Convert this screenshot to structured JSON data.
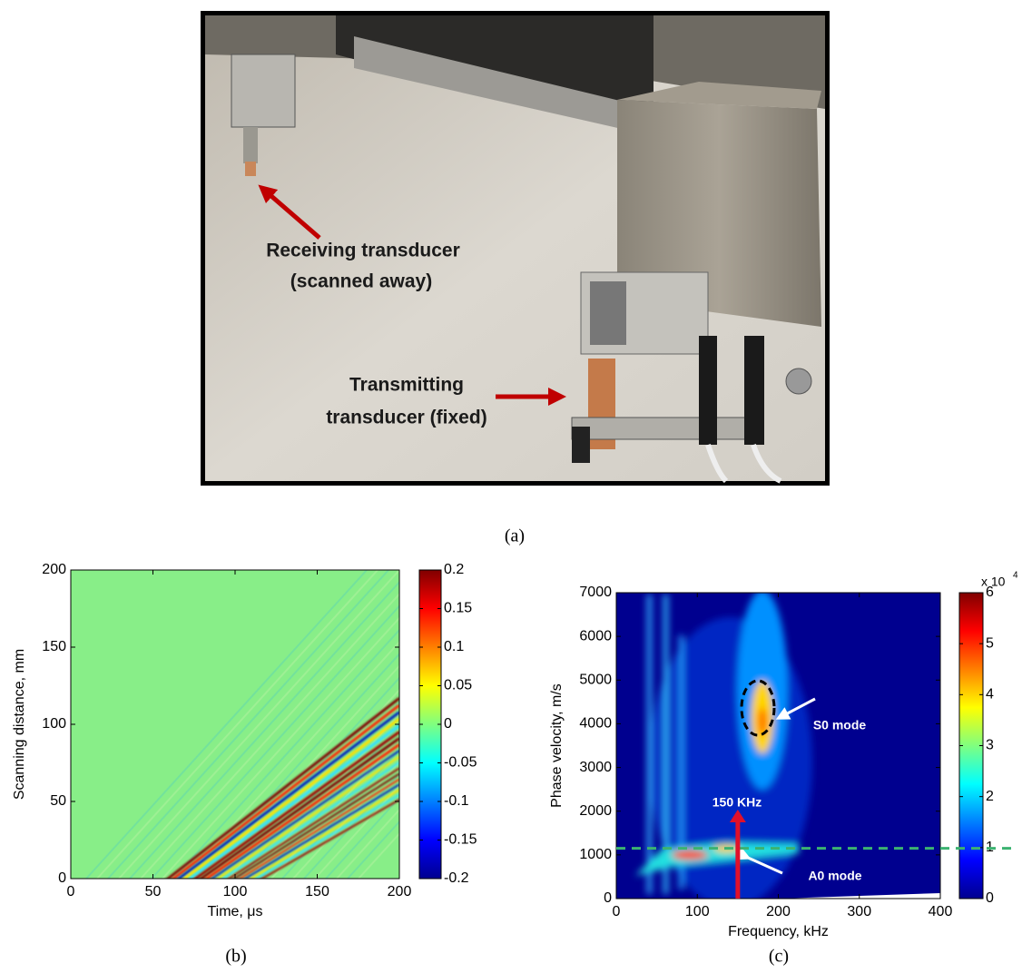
{
  "panel_a": {
    "annotations": [
      "Receiving transducer",
      "(scanned away)",
      "Transmitting",
      "transducer (fixed)"
    ],
    "label": "(a)"
  },
  "panel_b": {
    "type": "heatmap",
    "xlabel": "Time, μs",
    "ylabel": "Scanning distance, mm",
    "xlim": [
      0,
      200
    ],
    "xticks": [
      0,
      50,
      100,
      150,
      200
    ],
    "ylim": [
      0,
      200
    ],
    "yticks": [
      0,
      50,
      100,
      150,
      200
    ],
    "colorbar": {
      "lim": [
        -0.2,
        0.2
      ],
      "ticks": [
        -0.2,
        -0.15,
        -0.1,
        -0.05,
        0,
        0.05,
        0.1,
        0.15,
        0.2
      ]
    },
    "label": "(b)"
  },
  "panel_c": {
    "type": "heatmap",
    "xlabel": "Frequency, kHz",
    "ylabel": "Phase velocity, m/s",
    "xlim": [
      0,
      400
    ],
    "xticks": [
      0,
      100,
      200,
      300,
      400
    ],
    "ylim": [
      0,
      7000
    ],
    "yticks": [
      0,
      1000,
      2000,
      3000,
      4000,
      5000,
      6000,
      7000
    ],
    "colorbar": {
      "lim": [
        0,
        6
      ],
      "ticks": [
        0,
        1,
        2,
        3,
        4,
        5,
        6
      ],
      "exponent_base": "x 10",
      "exponent_power": "4"
    },
    "annotations": [
      "S0 mode",
      "150 KHz",
      "A0 mode"
    ],
    "marker_frequency": 150,
    "reference_velocity": 1150,
    "label": "(c)"
  }
}
